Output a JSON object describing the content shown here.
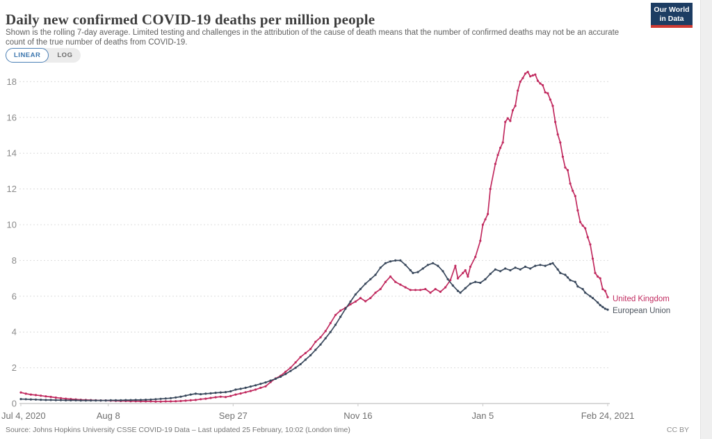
{
  "header": {
    "title": "Daily new confirmed COVID-19 deaths per million people",
    "subtitle": "Shown is the rolling 7-day average. Limited testing and challenges in the attribution of the cause of death means that the number of confirmed deaths may not be an accurate count of the true number of deaths from COVID-19.",
    "logo_line1": "Our World",
    "logo_line2": "in Data"
  },
  "controls": {
    "linear_label": "LINEAR",
    "log_label": "LOG",
    "active": "LINEAR"
  },
  "colors": {
    "uk_line": "#c12a5f",
    "eu_line": "#39485c",
    "eu_label": "#4c545e",
    "logo_bg": "#1d3d63",
    "logo_bar": "#cf3a33",
    "toggle_active_border": "#4a7fb5",
    "gridline": "#dcdcdc",
    "axis_line": "#b3b3b3"
  },
  "chart_data": {
    "type": "line",
    "title": "Daily new confirmed COVID-19 deaths per million people",
    "xlabel": "",
    "ylabel": "",
    "x_unit": "days since Jul 4, 2020 (x range Jul 4, 2020 to Feb 24, 2021)",
    "ylim": [
      0,
      18.6
    ],
    "grid": "horizontal dashed gridlines on",
    "legend_position": "labels at line ends, right side",
    "y_ticks": [
      0,
      2,
      4,
      6,
      8,
      10,
      12,
      14,
      16,
      18
    ],
    "x_tick_labels": [
      {
        "day": 0,
        "label": "Jul 4, 2020"
      },
      {
        "day": 35,
        "label": "Aug 8"
      },
      {
        "day": 85,
        "label": "Sep 27"
      },
      {
        "day": 135,
        "label": "Nov 16"
      },
      {
        "day": 185,
        "label": "Jan 5"
      },
      {
        "day": 235,
        "label": "Feb 24, 2021"
      }
    ],
    "series": [
      {
        "name": "United Kingdom",
        "color": "#c12a5f",
        "label_color": "#c12a5f",
        "points": [
          [
            0,
            0.62
          ],
          [
            2,
            0.55
          ],
          [
            4,
            0.5
          ],
          [
            6,
            0.47
          ],
          [
            8,
            0.44
          ],
          [
            10,
            0.4
          ],
          [
            12,
            0.37
          ],
          [
            14,
            0.33
          ],
          [
            16,
            0.3
          ],
          [
            18,
            0.27
          ],
          [
            20,
            0.25
          ],
          [
            22,
            0.23
          ],
          [
            24,
            0.21
          ],
          [
            26,
            0.2
          ],
          [
            28,
            0.19
          ],
          [
            30,
            0.18
          ],
          [
            32,
            0.17
          ],
          [
            34,
            0.17
          ],
          [
            36,
            0.16
          ],
          [
            38,
            0.15
          ],
          [
            40,
            0.14
          ],
          [
            42,
            0.14
          ],
          [
            44,
            0.13
          ],
          [
            46,
            0.13
          ],
          [
            48,
            0.12
          ],
          [
            50,
            0.12
          ],
          [
            52,
            0.12
          ],
          [
            54,
            0.11
          ],
          [
            56,
            0.11
          ],
          [
            58,
            0.12
          ],
          [
            60,
            0.12
          ],
          [
            62,
            0.13
          ],
          [
            64,
            0.14
          ],
          [
            66,
            0.16
          ],
          [
            68,
            0.18
          ],
          [
            70,
            0.2
          ],
          [
            72,
            0.24
          ],
          [
            74,
            0.27
          ],
          [
            76,
            0.31
          ],
          [
            78,
            0.35
          ],
          [
            80,
            0.38
          ],
          [
            82,
            0.36
          ],
          [
            84,
            0.42
          ],
          [
            86,
            0.5
          ],
          [
            88,
            0.56
          ],
          [
            90,
            0.63
          ],
          [
            92,
            0.7
          ],
          [
            94,
            0.78
          ],
          [
            96,
            0.88
          ],
          [
            98,
            0.96
          ],
          [
            100,
            1.2
          ],
          [
            102,
            1.4
          ],
          [
            104,
            1.55
          ],
          [
            106,
            1.78
          ],
          [
            108,
            2.0
          ],
          [
            110,
            2.3
          ],
          [
            112,
            2.6
          ],
          [
            114,
            2.82
          ],
          [
            116,
            3.05
          ],
          [
            118,
            3.45
          ],
          [
            120,
            3.7
          ],
          [
            122,
            4.05
          ],
          [
            124,
            4.5
          ],
          [
            126,
            4.95
          ],
          [
            128,
            5.2
          ],
          [
            130,
            5.35
          ],
          [
            132,
            5.55
          ],
          [
            134,
            5.7
          ],
          [
            136,
            5.9
          ],
          [
            138,
            5.72
          ],
          [
            140,
            5.9
          ],
          [
            142,
            6.2
          ],
          [
            144,
            6.4
          ],
          [
            146,
            6.8
          ],
          [
            148,
            7.1
          ],
          [
            150,
            6.8
          ],
          [
            152,
            6.65
          ],
          [
            154,
            6.5
          ],
          [
            156,
            6.35
          ],
          [
            158,
            6.35
          ],
          [
            160,
            6.35
          ],
          [
            162,
            6.4
          ],
          [
            164,
            6.2
          ],
          [
            166,
            6.4
          ],
          [
            168,
            6.25
          ],
          [
            170,
            6.5
          ],
          [
            172,
            6.9
          ],
          [
            174,
            7.7
          ],
          [
            175,
            7.0
          ],
          [
            177,
            7.3
          ],
          [
            178,
            7.45
          ],
          [
            179,
            7.1
          ],
          [
            180,
            7.65
          ],
          [
            182,
            8.2
          ],
          [
            184,
            9.1
          ],
          [
            185,
            10.0
          ],
          [
            186,
            10.3
          ],
          [
            187,
            10.6
          ],
          [
            188,
            12.0
          ],
          [
            190,
            13.4
          ],
          [
            191,
            13.9
          ],
          [
            192,
            14.3
          ],
          [
            193,
            14.6
          ],
          [
            194,
            15.75
          ],
          [
            195,
            15.95
          ],
          [
            196,
            15.8
          ],
          [
            197,
            16.4
          ],
          [
            198,
            16.65
          ],
          [
            199,
            17.5
          ],
          [
            200,
            18.0
          ],
          [
            201,
            18.2
          ],
          [
            202,
            18.45
          ],
          [
            203,
            18.55
          ],
          [
            204,
            18.3
          ],
          [
            205,
            18.35
          ],
          [
            206,
            18.4
          ],
          [
            207,
            18.05
          ],
          [
            208,
            17.9
          ],
          [
            209,
            17.8
          ],
          [
            210,
            17.4
          ],
          [
            211,
            17.35
          ],
          [
            212,
            17.0
          ],
          [
            213,
            16.65
          ],
          [
            214,
            15.75
          ],
          [
            215,
            15.05
          ],
          [
            216,
            14.6
          ],
          [
            217,
            13.8
          ],
          [
            218,
            13.2
          ],
          [
            219,
            13.05
          ],
          [
            220,
            12.3
          ],
          [
            221,
            11.9
          ],
          [
            222,
            11.6
          ],
          [
            223,
            10.8
          ],
          [
            224,
            10.15
          ],
          [
            225,
            9.95
          ],
          [
            226,
            9.8
          ],
          [
            227,
            9.3
          ],
          [
            228,
            8.9
          ],
          [
            229,
            8.1
          ],
          [
            230,
            7.3
          ],
          [
            231,
            7.1
          ],
          [
            232,
            7.0
          ],
          [
            233,
            6.4
          ],
          [
            234,
            6.3
          ],
          [
            235,
            5.95
          ]
        ]
      },
      {
        "name": "European Union",
        "color": "#39485c",
        "label_color": "#4c545e",
        "points": [
          [
            0,
            0.25
          ],
          [
            2,
            0.24
          ],
          [
            4,
            0.23
          ],
          [
            6,
            0.22
          ],
          [
            8,
            0.21
          ],
          [
            10,
            0.2
          ],
          [
            12,
            0.2
          ],
          [
            14,
            0.19
          ],
          [
            16,
            0.19
          ],
          [
            18,
            0.18
          ],
          [
            20,
            0.18
          ],
          [
            22,
            0.18
          ],
          [
            24,
            0.17
          ],
          [
            26,
            0.17
          ],
          [
            28,
            0.17
          ],
          [
            30,
            0.17
          ],
          [
            32,
            0.17
          ],
          [
            34,
            0.17
          ],
          [
            36,
            0.18
          ],
          [
            38,
            0.18
          ],
          [
            40,
            0.18
          ],
          [
            42,
            0.19
          ],
          [
            44,
            0.19
          ],
          [
            46,
            0.2
          ],
          [
            48,
            0.2
          ],
          [
            50,
            0.21
          ],
          [
            52,
            0.22
          ],
          [
            54,
            0.24
          ],
          [
            56,
            0.26
          ],
          [
            58,
            0.28
          ],
          [
            60,
            0.3
          ],
          [
            62,
            0.34
          ],
          [
            64,
            0.38
          ],
          [
            66,
            0.44
          ],
          [
            68,
            0.5
          ],
          [
            70,
            0.55
          ],
          [
            72,
            0.52
          ],
          [
            74,
            0.55
          ],
          [
            76,
            0.57
          ],
          [
            78,
            0.6
          ],
          [
            80,
            0.62
          ],
          [
            82,
            0.64
          ],
          [
            84,
            0.68
          ],
          [
            86,
            0.78
          ],
          [
            88,
            0.82
          ],
          [
            90,
            0.88
          ],
          [
            92,
            0.95
          ],
          [
            94,
            1.02
          ],
          [
            96,
            1.1
          ],
          [
            98,
            1.18
          ],
          [
            100,
            1.28
          ],
          [
            102,
            1.38
          ],
          [
            104,
            1.5
          ],
          [
            106,
            1.65
          ],
          [
            108,
            1.82
          ],
          [
            110,
            2.0
          ],
          [
            112,
            2.2
          ],
          [
            114,
            2.45
          ],
          [
            116,
            2.7
          ],
          [
            118,
            3.0
          ],
          [
            120,
            3.3
          ],
          [
            122,
            3.65
          ],
          [
            124,
            4.0
          ],
          [
            126,
            4.4
          ],
          [
            128,
            4.85
          ],
          [
            130,
            5.3
          ],
          [
            132,
            5.7
          ],
          [
            134,
            6.1
          ],
          [
            136,
            6.4
          ],
          [
            138,
            6.7
          ],
          [
            140,
            6.95
          ],
          [
            142,
            7.2
          ],
          [
            144,
            7.6
          ],
          [
            146,
            7.85
          ],
          [
            148,
            7.95
          ],
          [
            150,
            8.0
          ],
          [
            152,
            8.0
          ],
          [
            154,
            7.75
          ],
          [
            156,
            7.45
          ],
          [
            157,
            7.3
          ],
          [
            159,
            7.35
          ],
          [
            161,
            7.55
          ],
          [
            163,
            7.75
          ],
          [
            165,
            7.85
          ],
          [
            167,
            7.7
          ],
          [
            169,
            7.4
          ],
          [
            171,
            6.95
          ],
          [
            173,
            6.6
          ],
          [
            175,
            6.3
          ],
          [
            176,
            6.2
          ],
          [
            178,
            6.45
          ],
          [
            180,
            6.7
          ],
          [
            182,
            6.8
          ],
          [
            184,
            6.75
          ],
          [
            186,
            6.95
          ],
          [
            188,
            7.25
          ],
          [
            190,
            7.5
          ],
          [
            192,
            7.4
          ],
          [
            194,
            7.55
          ],
          [
            196,
            7.45
          ],
          [
            198,
            7.6
          ],
          [
            200,
            7.5
          ],
          [
            202,
            7.65
          ],
          [
            204,
            7.55
          ],
          [
            206,
            7.7
          ],
          [
            208,
            7.75
          ],
          [
            210,
            7.7
          ],
          [
            212,
            7.8
          ],
          [
            213,
            7.85
          ],
          [
            215,
            7.5
          ],
          [
            216,
            7.3
          ],
          [
            218,
            7.2
          ],
          [
            219,
            7.05
          ],
          [
            220,
            6.9
          ],
          [
            222,
            6.8
          ],
          [
            223,
            6.55
          ],
          [
            225,
            6.4
          ],
          [
            226,
            6.2
          ],
          [
            228,
            6.0
          ],
          [
            229,
            5.9
          ],
          [
            231,
            5.65
          ],
          [
            232,
            5.5
          ],
          [
            233,
            5.4
          ],
          [
            234,
            5.3
          ],
          [
            235,
            5.25
          ]
        ]
      }
    ]
  },
  "footer": {
    "source": "Source: Johns Hopkins University CSSE COVID-19 Data – Last updated 25 February, 10:02 (London time)",
    "license": "CC BY"
  }
}
